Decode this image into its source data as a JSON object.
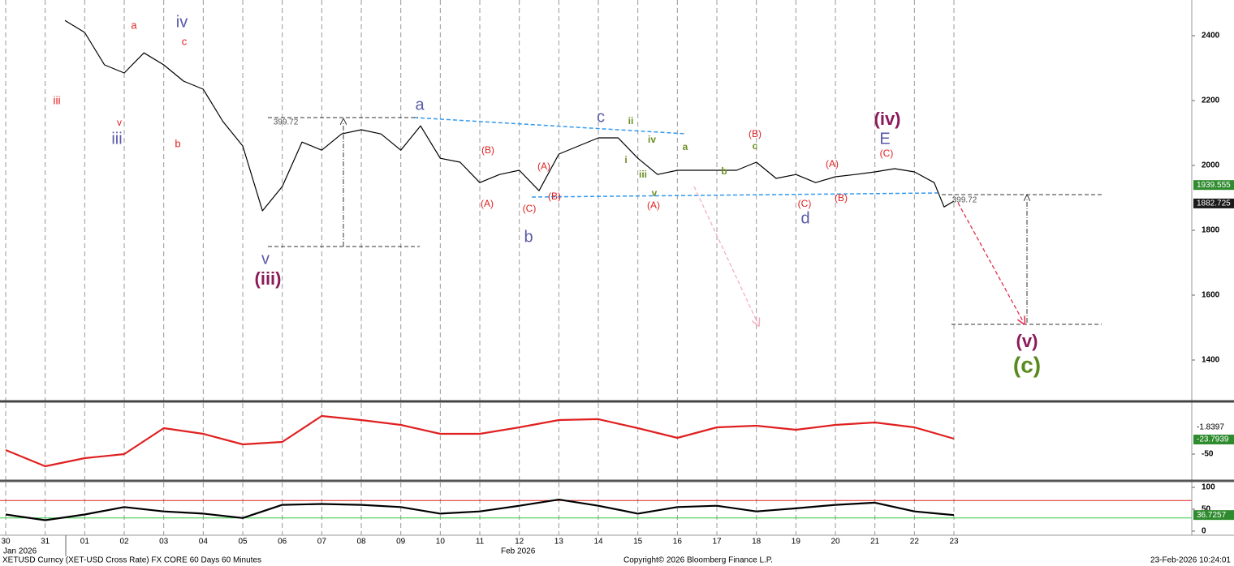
{
  "chart_data": [
    {
      "type": "line",
      "color": "#000000",
      "x": [
        1.5,
        2,
        2.5,
        3,
        3.5,
        4,
        4.5,
        5,
        5.5,
        6,
        6.5,
        7,
        7.5,
        8,
        8.5,
        9,
        9.5,
        10,
        10.5,
        11,
        11.5,
        12,
        12.5,
        13,
        13.5,
        14,
        14.5,
        15,
        15.5,
        16,
        16.5,
        17,
        17.5,
        18,
        18.5,
        19,
        19.5,
        20,
        20.5,
        21,
        21.5,
        22,
        22.5,
        23,
        23.5,
        23.75,
        24
      ],
      "values": [
        2447,
        2410,
        2310,
        2285,
        2347,
        2310,
        2260,
        2235,
        2135,
        2060,
        1860,
        1935,
        2072,
        2047,
        2097,
        2110,
        2097,
        2047,
        2122,
        2022,
        2010,
        1947,
        1972,
        1985,
        1922,
        2035,
        2060,
        2085,
        2085,
        2022,
        1972,
        1985,
        1985,
        1985,
        1985,
        2010,
        1960,
        1972,
        1947,
        1965,
        1972,
        1980,
        1990,
        1980,
        1947,
        1872,
        1890
      ],
      "ylim": [
        1272.5,
        2510
      ],
      "yticks": [
        1400,
        1600,
        1800,
        2000,
        2200,
        2400
      ],
      "price_tags": [
        {
          "value": 1939.555,
          "color": "#2e8b2e"
        },
        {
          "value": 1882.725,
          "color": "#1a1a1a"
        }
      ],
      "annotations": [
        {
          "text": "iii",
          "color": "#e02020"
        },
        {
          "text": "a",
          "color": "#e02020"
        },
        {
          "text": "iv",
          "color": "#5a5aa8"
        },
        {
          "text": "c",
          "color": "#e02020"
        },
        {
          "text": "v",
          "color": "#e02020"
        },
        {
          "text": "iii",
          "color": "#5a5aa8"
        },
        {
          "text": "b",
          "color": "#e02020"
        },
        {
          "text": "v",
          "color": "#5a5aa8"
        },
        {
          "text": "(iii)",
          "color": "#8b1a5a"
        },
        {
          "text": "a",
          "color": "#5a5aa8"
        },
        {
          "text": "(B)",
          "color": "#e02020"
        },
        {
          "text": "(A)",
          "color": "#e02020"
        },
        {
          "text": "(C)",
          "color": "#e02020"
        },
        {
          "text": "(B)",
          "color": "#e02020"
        },
        {
          "text": "(A)",
          "color": "#e02020"
        },
        {
          "text": "b",
          "color": "#5a5aa8"
        },
        {
          "text": "c",
          "color": "#5a5aa8"
        },
        {
          "text": "ii",
          "color": "#6b8e23"
        },
        {
          "text": "iv",
          "color": "#6b8e23"
        },
        {
          "text": "i",
          "color": "#6b8e23"
        },
        {
          "text": "iii",
          "color": "#6b8e23"
        },
        {
          "text": "v",
          "color": "#6b8e23"
        },
        {
          "text": "a",
          "color": "#6b8e23"
        },
        {
          "text": "(A)",
          "color": "#e02020"
        },
        {
          "text": "(B)",
          "color": "#e02020"
        },
        {
          "text": "c",
          "color": "#6b8e23"
        },
        {
          "text": "b",
          "color": "#6b8e23"
        },
        {
          "text": "(C)",
          "color": "#e02020"
        },
        {
          "text": "d",
          "color": "#5a5aa8"
        },
        {
          "text": "(A)",
          "color": "#e02020"
        },
        {
          "text": "(B)",
          "color": "#e02020"
        },
        {
          "text": "(iv)",
          "color": "#8b1a5a"
        },
        {
          "text": "E",
          "color": "#5a5aa8"
        },
        {
          "text": "(C)",
          "color": "#e02020"
        },
        {
          "text": "(v)",
          "color": "#8b1a5a"
        },
        {
          "text": "(c)",
          "color": "#5a8a1e"
        },
        {
          "text": "399.72",
          "color": "#555555"
        },
        {
          "text": "399.72",
          "color": "#555555"
        }
      ]
    },
    {
      "type": "line",
      "color": "#e02020",
      "x": [
        0,
        1,
        2,
        3,
        4,
        5,
        6,
        7,
        8,
        9,
        10,
        11,
        12,
        13,
        14,
        15,
        16,
        17,
        18,
        19,
        20,
        21,
        22,
        23,
        24
      ],
      "values": [
        -42.7,
        -71.9,
        -57.3,
        -50,
        -3.3,
        -13.5,
        -32.5,
        -28.1,
        18.6,
        11.3,
        2.5,
        -13.5,
        -13.5,
        -1.8,
        11.3,
        12.8,
        -3.3,
        -20.8,
        -1.8,
        1.1,
        -6.2,
        2.5,
        6.9,
        -1.8,
        -22.3
      ],
      "ylim": [
        -96.7,
        41.9
      ],
      "yticks": [
        -50
      ],
      "price_tags": [
        {
          "value": -1.8397,
          "color": null
        },
        {
          "value": -23.7939,
          "color": "#2e8b2e"
        }
      ]
    },
    {
      "type": "line",
      "color": "#000000",
      "x": [
        0,
        1,
        2,
        3,
        4,
        5,
        6,
        7,
        8,
        9,
        10,
        11,
        12,
        13,
        14,
        15,
        16,
        17,
        18,
        19,
        20,
        21,
        22,
        23,
        24
      ],
      "values": [
        38,
        25,
        38,
        55,
        45,
        40,
        30,
        60,
        62,
        60,
        55,
        40,
        45,
        58,
        72,
        58,
        40,
        55,
        58,
        45,
        52,
        60,
        65,
        45,
        36.7
      ],
      "ylim": [
        -9.3,
        111.1
      ],
      "yticks": [
        0,
        50,
        100
      ],
      "levels": [
        {
          "value": 70,
          "color": "#e02020"
        },
        {
          "value": 30,
          "color": "#2ecc40"
        }
      ],
      "price_tags": [
        {
          "value": 36.7257,
          "color": "#2e8b2e"
        }
      ],
      "xlim": [
        -0.144,
        30.02
      ],
      "xticks": [
        {
          "value": 0,
          "label": "30"
        },
        {
          "value": 1,
          "label": "31"
        },
        {
          "value": 2,
          "label": "01"
        },
        {
          "value": 3,
          "label": "02"
        },
        {
          "value": 4,
          "label": "03"
        },
        {
          "value": 5,
          "label": "04"
        },
        {
          "value": 6,
          "label": "05"
        },
        {
          "value": 7,
          "label": "06"
        },
        {
          "value": 8,
          "label": "07"
        },
        {
          "value": 9,
          "label": "08"
        },
        {
          "value": 10,
          "label": "09"
        },
        {
          "value": 11,
          "label": "10"
        },
        {
          "value": 12,
          "label": "11"
        },
        {
          "value": 13,
          "label": "12"
        },
        {
          "value": 14,
          "label": "13"
        },
        {
          "value": 15,
          "label": "14"
        },
        {
          "value": 16,
          "label": "15"
        },
        {
          "value": 17,
          "label": "16"
        },
        {
          "value": 18,
          "label": "17"
        },
        {
          "value": 19,
          "label": "18"
        },
        {
          "value": 20,
          "label": "19"
        },
        {
          "value": 21,
          "label": "20"
        },
        {
          "value": 22,
          "label": "21"
        },
        {
          "value": 23,
          "label": "22"
        },
        {
          "value": 24,
          "label": "23"
        }
      ],
      "month_labels": [
        "Jan 2026",
        "Feb 2026"
      ]
    }
  ],
  "footer": {
    "security": "XETUSD Curncy (XET-USD Cross Rate) FX CORE 60 Days 60 Minutes",
    "copyright": "Copyright© 2026 Bloomberg Finance L.P.",
    "timestamp": "23-Feb-2026 10:24:01"
  }
}
